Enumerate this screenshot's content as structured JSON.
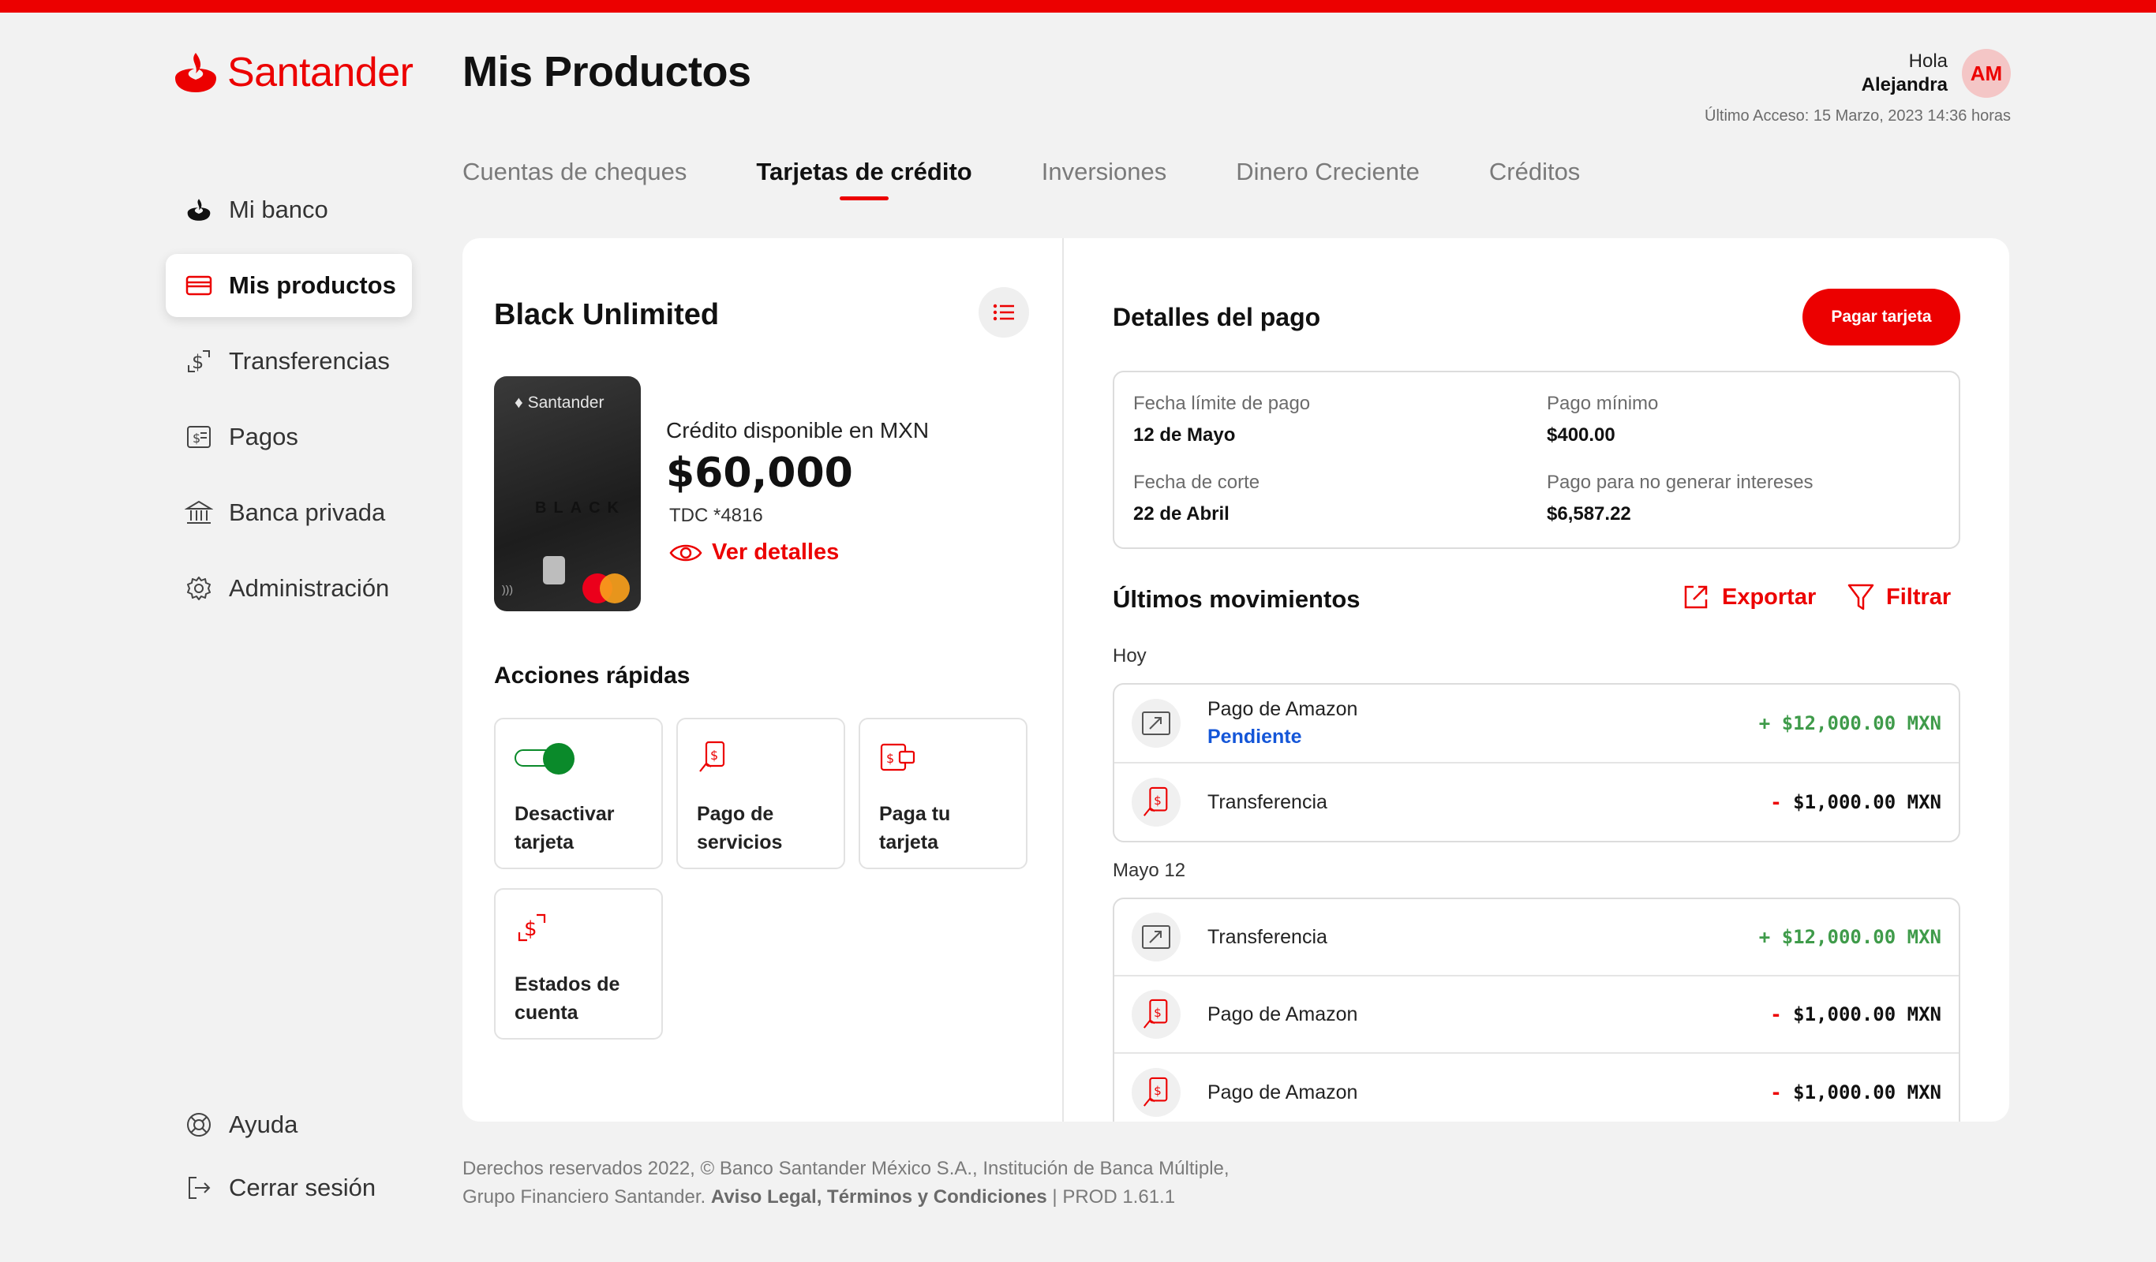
{
  "brand": {
    "name": "Santander",
    "accent": "#ec0000"
  },
  "header": {
    "title": "Mis Productos",
    "greeting": "Hola",
    "user_name": "Alejandra",
    "avatar_initials": "AM",
    "last_access": "Último Acceso: 15 Marzo, 2023 14:36 horas"
  },
  "sidebar": {
    "items": [
      {
        "label": "Mi banco",
        "icon": "santander-flame-icon"
      },
      {
        "label": "Mis productos",
        "icon": "card-icon",
        "active": true
      },
      {
        "label": "Transferencias",
        "icon": "transfer-icon"
      },
      {
        "label": "Pagos",
        "icon": "payments-icon"
      },
      {
        "label": "Banca privada",
        "icon": "bank-icon"
      },
      {
        "label": "Administración",
        "icon": "gear-icon"
      }
    ],
    "bottom": [
      {
        "label": "Ayuda",
        "icon": "help-icon"
      },
      {
        "label": "Cerrar sesión",
        "icon": "logout-icon"
      }
    ]
  },
  "tabs": [
    {
      "label": "Cuentas de cheques"
    },
    {
      "label": "Tarjetas de crédito",
      "active": true
    },
    {
      "label": "Inversiones"
    },
    {
      "label": "Dinero Creciente"
    },
    {
      "label": "Créditos"
    }
  ],
  "card": {
    "name": "Black Unlimited",
    "card_brand": "Santander",
    "card_black": "BLACK",
    "credit_label": "Crédito disponible en MXN",
    "credit_amount": "$60,000",
    "tdc": "TDC *4816",
    "details_link": "Ver detalles"
  },
  "quick_actions": {
    "title": "Acciones rápidas",
    "items": [
      {
        "label_1": "Desactivar",
        "label_2": "tarjeta",
        "icon": "toggle-icon"
      },
      {
        "label_1": "Pago de",
        "label_2": "servicios",
        "icon": "service-payment-icon"
      },
      {
        "label_1": "Paga tu",
        "label_2": "tarjeta",
        "icon": "card-payment-icon"
      },
      {
        "label_1": "Estados de",
        "label_2": "cuenta",
        "icon": "statement-icon"
      }
    ]
  },
  "payment": {
    "title": "Detalles del pago",
    "pay_button": "Pagar tarjeta",
    "due_date_label": "Fecha límite de pago",
    "due_date": "12 de Mayo",
    "min_payment_label": "Pago mínimo",
    "min_payment": "$400.00",
    "cut_date_label": "Fecha de corte",
    "cut_date": "22 de Abril",
    "no_interest_label": "Pago para no generar intereses",
    "no_interest": "$6,587.22"
  },
  "movements": {
    "title": "Últimos movimientos",
    "export": "Exportar",
    "filter": "Filtrar",
    "groups": [
      {
        "label": "Hoy",
        "rows": [
          {
            "name": "Pago de Amazon",
            "status": "Pendiente",
            "sign": "+",
            "amount": "$12,000.00 MXN",
            "type": "pos",
            "icon": "incoming-icon"
          },
          {
            "name": "Transferencia",
            "sign": "-",
            "amount": "$1,000.00 MXN",
            "type": "neg",
            "icon": "payment-hand-icon"
          }
        ]
      },
      {
        "label": "Mayo 12",
        "rows": [
          {
            "name": "Transferencia",
            "sign": "+",
            "amount": "$12,000.00 MXN",
            "type": "pos",
            "icon": "incoming-icon"
          },
          {
            "name": "Pago de Amazon",
            "sign": "-",
            "amount": "$1,000.00 MXN",
            "type": "neg",
            "icon": "payment-hand-icon"
          },
          {
            "name": "Pago de Amazon",
            "sign": "-",
            "amount": "$1,000.00 MXN",
            "type": "neg",
            "icon": "payment-hand-icon"
          }
        ]
      }
    ]
  },
  "footer": {
    "line1": "Derechos reservados 2022, © Banco Santander México S.A., Institución de Banca Múltiple,",
    "line2_a": "Grupo Financiero Santander.",
    "line2_b": "Aviso Legal, Términos y Condiciones",
    "line2_c": "| PROD 1.61.1"
  }
}
